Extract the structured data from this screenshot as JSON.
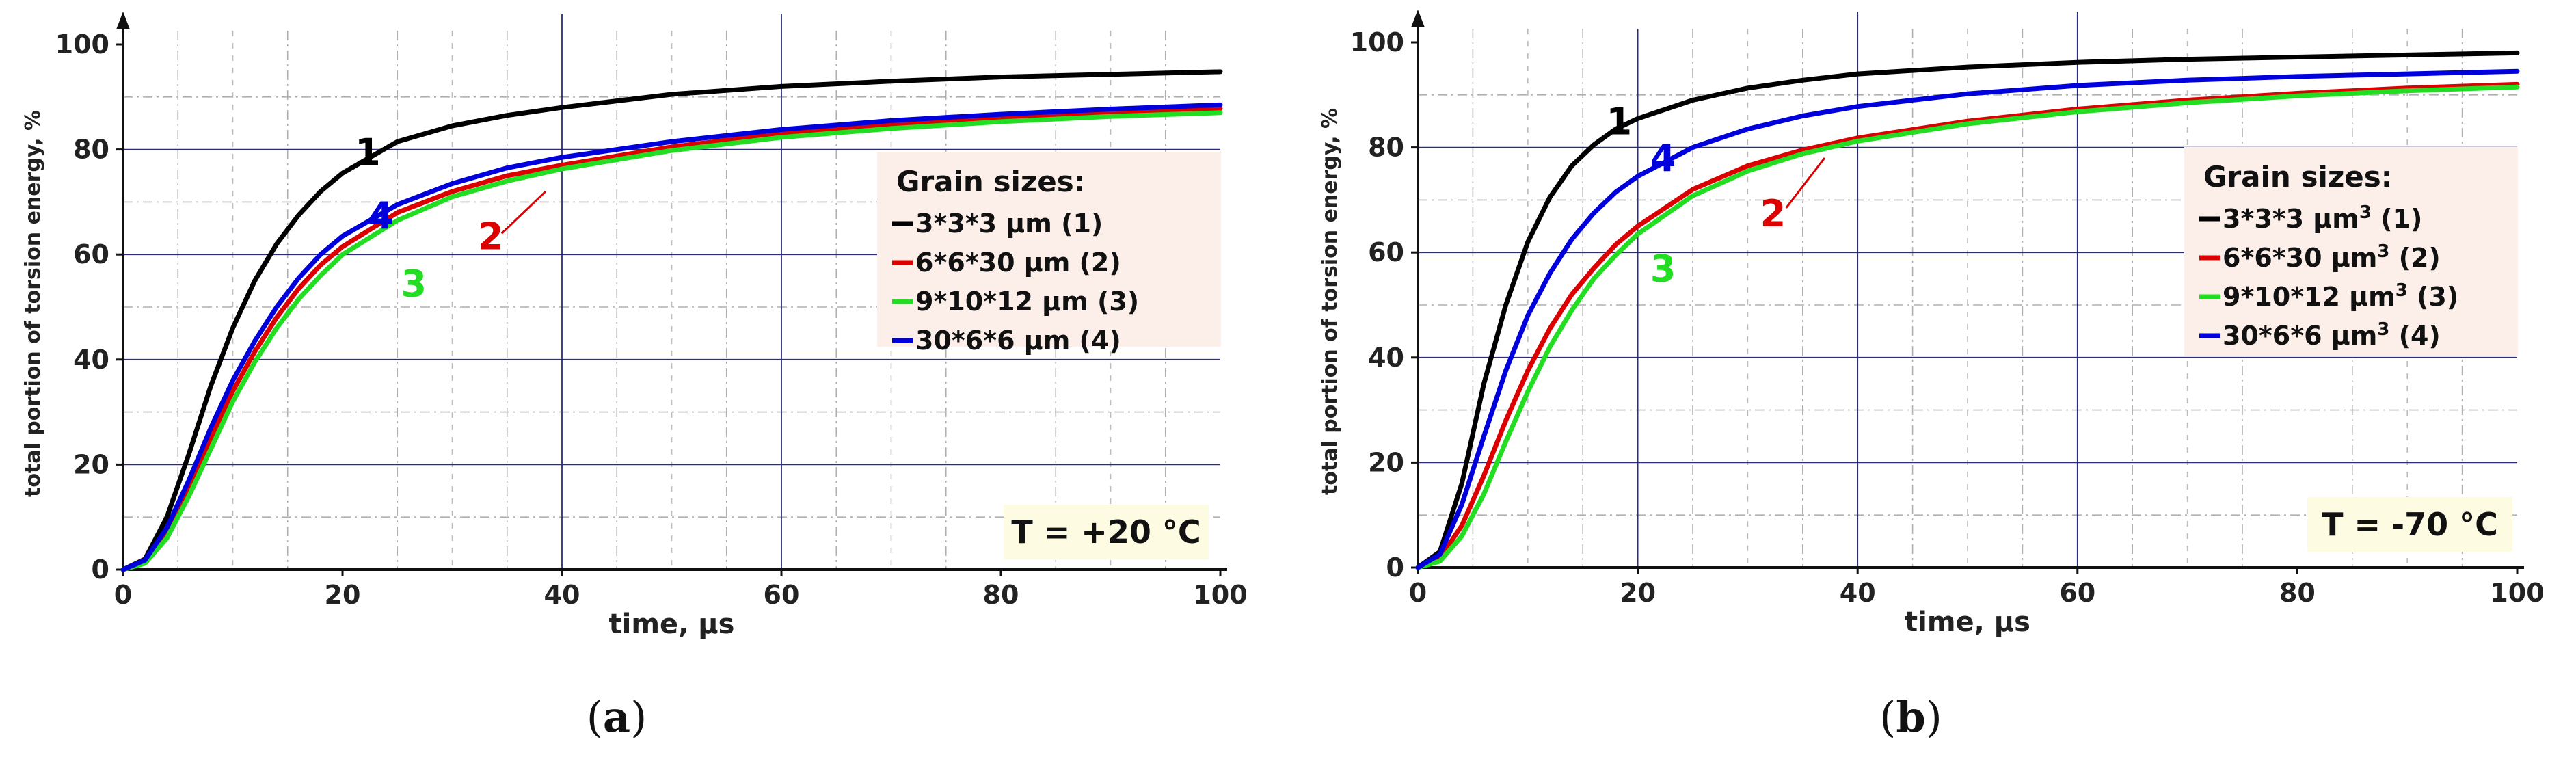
{
  "colors": {
    "1": "#000000",
    "2": "#dd0000",
    "3": "#22dd22",
    "4": "#0000dd"
  },
  "chart_data": [
    {
      "type": "line",
      "caption": [
        "(",
        "a",
        ")"
      ],
      "xlabel": "time, µs",
      "ylabel": "total portion of torsion energy, %",
      "xlim": [
        0,
        100
      ],
      "ylim": [
        0,
        100
      ],
      "xticks": [
        "0",
        "20",
        "40",
        "60",
        "80",
        "100"
      ],
      "yticks": [
        "0",
        "20",
        "40",
        "60",
        "80",
        "100"
      ],
      "grid": true,
      "legend": {
        "title": "Grain sizes:",
        "placement": "center-right",
        "entries": [
          {
            "id": "1",
            "text": "3*3*3 µm (1)",
            "sup": ""
          },
          {
            "id": "2",
            "text": "6*6*30 µm (2)",
            "sup": ""
          },
          {
            "id": "3",
            "text": "9*10*12 µm (3)",
            "sup": ""
          },
          {
            "id": "4",
            "text": "30*6*6 µm (4)",
            "sup": ""
          }
        ]
      },
      "temp_label": "T = +20 °C",
      "curve_labels": [
        {
          "id": "1",
          "text": "1",
          "x": 22.3,
          "y": 77
        },
        {
          "id": "4",
          "text": "4",
          "x": 23.5,
          "y": 65
        },
        {
          "id": "2",
          "text": "2",
          "x": 33.5,
          "y": 61
        },
        {
          "id": "3",
          "text": "3",
          "x": 26.5,
          "y": 52
        }
      ],
      "leader": {
        "id": "2",
        "from": [
          34.5,
          64
        ],
        "to": [
          38.5,
          72
        ]
      },
      "x": [
        0,
        2,
        4,
        6,
        8,
        10,
        12,
        14,
        16,
        18,
        20,
        25,
        30,
        35,
        40,
        50,
        60,
        70,
        80,
        90,
        100
      ],
      "series": [
        {
          "id": "1",
          "name": "3*3*3 µm (1)",
          "values": [
            0,
            2,
            10,
            22,
            35,
            46,
            55,
            62,
            67.5,
            72,
            75.5,
            81.5,
            84.5,
            86.5,
            88,
            90.5,
            92,
            93,
            93.8,
            94.3,
            94.8
          ]
        },
        {
          "id": "2",
          "name": "6*6*30 µm (2)",
          "values": [
            0,
            1.5,
            7,
            15.5,
            25,
            34,
            41.5,
            48,
            53.5,
            58,
            61.5,
            68,
            72,
            75,
            77,
            80.5,
            83,
            84.8,
            86,
            87,
            87.8
          ]
        },
        {
          "id": "3",
          "name": "9*10*12 µm (3)",
          "values": [
            0,
            1.2,
            6,
            14,
            23,
            32,
            39.5,
            46,
            51.5,
            56,
            60,
            66.5,
            71,
            74,
            76.3,
            79.8,
            82.3,
            84,
            85.3,
            86.3,
            87
          ]
        },
        {
          "id": "4",
          "name": "30*6*6 µm (4)",
          "values": [
            0,
            1.8,
            8,
            17,
            27,
            36,
            43.5,
            50,
            55.5,
            60,
            63.5,
            69.5,
            73.5,
            76.5,
            78.5,
            81.5,
            83.8,
            85.5,
            86.7,
            87.7,
            88.5
          ]
        }
      ]
    },
    {
      "type": "line",
      "caption": [
        "(",
        "b",
        ")"
      ],
      "xlabel": "time, µs",
      "ylabel": "total portion of torsion energy, %",
      "xlim": [
        0,
        100
      ],
      "ylim": [
        0,
        100
      ],
      "xticks": [
        "0",
        "20",
        "40",
        "60",
        "80",
        "100"
      ],
      "yticks": [
        "0",
        "20",
        "40",
        "60",
        "80",
        "100"
      ],
      "grid": true,
      "legend": {
        "title": "Grain sizes:",
        "placement": "center-right",
        "entries": [
          {
            "id": "1",
            "text": "3*3*3 µm",
            "sup": "3",
            "tail": " (1)"
          },
          {
            "id": "2",
            "text": "6*6*30 µm",
            "sup": "3",
            "tail": " (2)"
          },
          {
            "id": "3",
            "text": "9*10*12 µm",
            "sup": "3",
            "tail": " (3)"
          },
          {
            "id": "4",
            "text": "30*6*6 µm",
            "sup": "3",
            "tail": " (4)"
          }
        ]
      },
      "temp_label": "T = -70 °C",
      "curve_labels": [
        {
          "id": "1",
          "text": "1",
          "x": 18.3,
          "y": 82.5
        },
        {
          "id": "4",
          "text": "4",
          "x": 22.3,
          "y": 75.5
        },
        {
          "id": "2",
          "text": "2",
          "x": 32.3,
          "y": 65
        },
        {
          "id": "3",
          "text": "3",
          "x": 22.3,
          "y": 54.5
        }
      ],
      "leader": {
        "id": "2",
        "from": [
          33.5,
          68.5
        ],
        "to": [
          37,
          78
        ]
      },
      "x": [
        0,
        2,
        4,
        6,
        8,
        10,
        12,
        14,
        16,
        18,
        20,
        25,
        30,
        35,
        40,
        50,
        60,
        70,
        80,
        90,
        100
      ],
      "series": [
        {
          "id": "1",
          "name": "3*3*3 µm3 (1)",
          "values": [
            0,
            3,
            16,
            35,
            50,
            62,
            70.5,
            76.5,
            80.5,
            83.5,
            85.5,
            89,
            91.3,
            92.8,
            94,
            95.3,
            96.2,
            96.8,
            97.2,
            97.6,
            98
          ]
        },
        {
          "id": "2",
          "name": "6*6*30 µm3 (2)",
          "values": [
            0,
            1.8,
            8,
            17.5,
            28,
            37.5,
            45.5,
            52,
            57,
            61.5,
            65,
            72,
            76.5,
            79.5,
            81.8,
            85,
            87.3,
            89,
            90.3,
            91.3,
            92
          ]
        },
        {
          "id": "3",
          "name": "9*10*12 µm3 (3)",
          "values": [
            0,
            1.2,
            6,
            14,
            24,
            33.5,
            42,
            49,
            55,
            59.5,
            63.5,
            70.8,
            75.5,
            78.8,
            81.2,
            84.5,
            86.8,
            88.5,
            89.8,
            90.8,
            91.5
          ]
        },
        {
          "id": "4",
          "name": "30*6*6 µm3 (4)",
          "values": [
            0,
            2.5,
            12,
            25,
            37.5,
            48,
            56,
            62.5,
            67.5,
            71.5,
            74.5,
            80,
            83.5,
            86,
            87.8,
            90.2,
            91.8,
            92.8,
            93.5,
            94,
            94.5
          ]
        }
      ]
    }
  ]
}
